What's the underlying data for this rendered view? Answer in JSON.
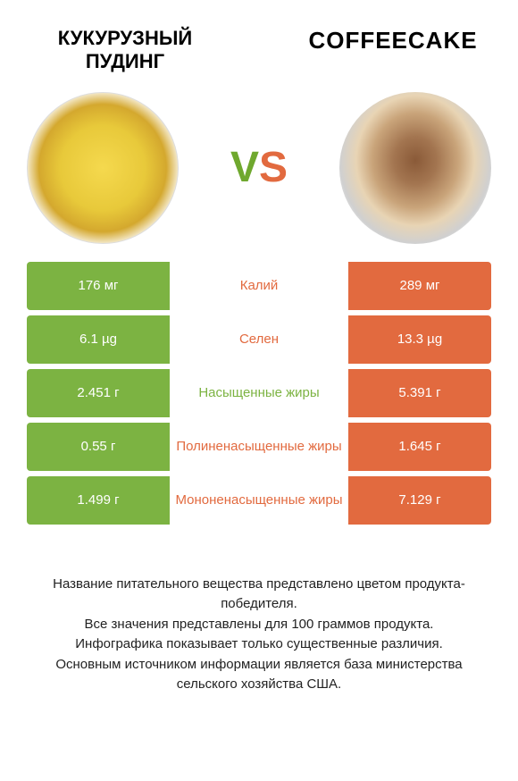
{
  "colors": {
    "green": "#7cb342",
    "orange": "#e26a3f",
    "text": "#222222"
  },
  "header": {
    "left_title": "КУКУРУЗНЫЙ ПУДИНГ",
    "right_title": "COFFEECAKE",
    "vs_v": "V",
    "vs_s": "S"
  },
  "rows": [
    {
      "left_value": "176 мг",
      "label": "Калий",
      "right_value": "289 мг",
      "winner": "right"
    },
    {
      "left_value": "6.1 µg",
      "label": "Селен",
      "right_value": "13.3 µg",
      "winner": "right"
    },
    {
      "left_value": "2.451 г",
      "label": "Насыщенные жиры",
      "right_value": "5.391 г",
      "winner": "left"
    },
    {
      "left_value": "0.55 г",
      "label": "Полиненасыщенные жиры",
      "right_value": "1.645 г",
      "winner": "right"
    },
    {
      "left_value": "1.499 г",
      "label": "Мононенасыщенные жиры",
      "right_value": "7.129 г",
      "winner": "right"
    }
  ],
  "footer": {
    "line1": "Название питательного вещества представлено цветом продукта-победителя.",
    "line2": "Все значения представлены для 100 граммов продукта.",
    "line3": "Инфографика показывает только существенные различия.",
    "line4": "Основным источником информации является база министерства сельского хозяйства США."
  }
}
